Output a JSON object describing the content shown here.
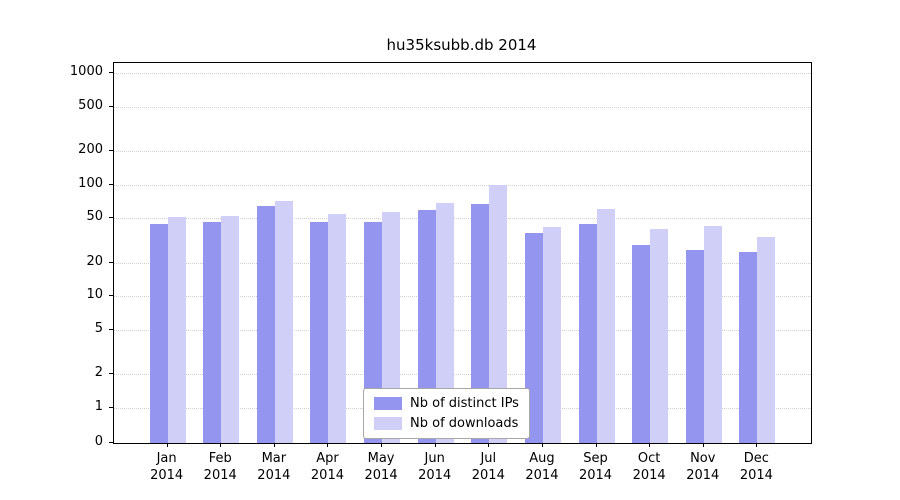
{
  "title": "hu35ksubb.db 2014",
  "chart_data": {
    "type": "bar",
    "title": "hu35ksubb.db 2014",
    "categories": [
      "Jan",
      "Feb",
      "Mar",
      "Apr",
      "May",
      "Jun",
      "Jul",
      "Aug",
      "Sep",
      "Oct",
      "Nov",
      "Dec"
    ],
    "year": "2014",
    "series": [
      {
        "name": "Nb of distinct IPs",
        "color": "#9495ee",
        "values": [
          44,
          46,
          65,
          46,
          46,
          59,
          67,
          37,
          44,
          29,
          26,
          25
        ]
      },
      {
        "name": "Nb of downloads",
        "color": "#cfcff7",
        "values": [
          51,
          52,
          72,
          55,
          57,
          68,
          100,
          42,
          61,
          40,
          43,
          34
        ]
      }
    ],
    "yscale": "log",
    "yticks": [
      1000,
      500,
      200,
      100,
      50,
      20,
      10,
      5,
      2,
      1,
      0
    ],
    "ylim": [
      0,
      1000
    ],
    "grid": true,
    "legend_position": "bottom-center-inside"
  }
}
